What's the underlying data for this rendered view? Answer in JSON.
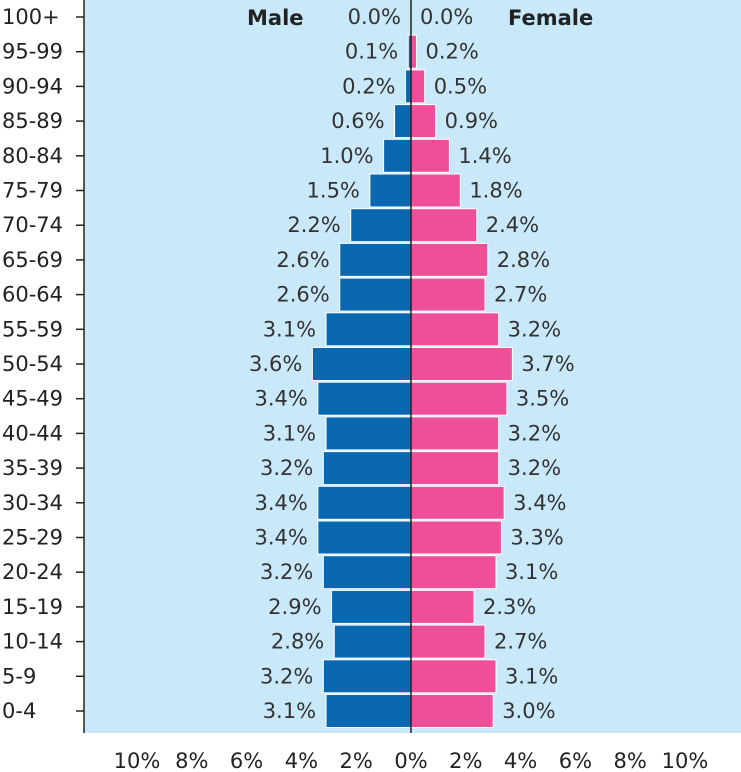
{
  "chart_data": {
    "type": "bar",
    "orientation": "horizontal",
    "subtype": "population-pyramid",
    "categories": [
      "0-4",
      "5-9",
      "10-14",
      "15-19",
      "20-24",
      "25-29",
      "30-34",
      "35-39",
      "40-44",
      "45-49",
      "50-54",
      "55-59",
      "60-64",
      "65-69",
      "70-74",
      "75-79",
      "80-84",
      "85-89",
      "90-94",
      "95-99",
      "100+"
    ],
    "series": [
      {
        "name": "Male",
        "color": "#0a68b0",
        "values": [
          3.1,
          3.2,
          2.8,
          2.9,
          3.2,
          3.4,
          3.4,
          3.2,
          3.1,
          3.4,
          3.6,
          3.1,
          2.6,
          2.6,
          2.2,
          1.5,
          1.0,
          0.6,
          0.2,
          0.1,
          0.0
        ],
        "labels": [
          "3.1%",
          "3.2%",
          "2.8%",
          "2.9%",
          "3.2%",
          "3.4%",
          "3.4%",
          "3.2%",
          "3.1%",
          "3.4%",
          "3.6%",
          "3.1%",
          "2.6%",
          "2.6%",
          "2.2%",
          "1.5%",
          "1.0%",
          "0.6%",
          "0.2%",
          "0.1%",
          "0.0%"
        ]
      },
      {
        "name": "Female",
        "color": "#ee4f98",
        "values": [
          3.0,
          3.1,
          2.7,
          2.3,
          3.1,
          3.3,
          3.4,
          3.2,
          3.2,
          3.5,
          3.7,
          3.2,
          2.7,
          2.8,
          2.4,
          1.8,
          1.4,
          0.9,
          0.5,
          0.2,
          0.0
        ],
        "labels": [
          "3.0%",
          "3.1%",
          "2.7%",
          "2.3%",
          "3.1%",
          "3.3%",
          "3.4%",
          "3.2%",
          "3.2%",
          "3.5%",
          "3.7%",
          "3.2%",
          "2.7%",
          "2.8%",
          "2.4%",
          "1.8%",
          "1.4%",
          "0.9%",
          "0.5%",
          "0.2%",
          "0.0%"
        ]
      }
    ],
    "xticks": [
      -10,
      -8,
      -6,
      -4,
      -2,
      0,
      2,
      4,
      6,
      8,
      10
    ],
    "xtick_labels": [
      "10%",
      "8%",
      "6%",
      "4%",
      "2%",
      "0%",
      "2%",
      "4%",
      "6%",
      "8%",
      "10%"
    ],
    "xlim": [
      -12,
      12
    ],
    "legend_placement": "top",
    "grid": false,
    "background_color": "#c9e9fa"
  }
}
